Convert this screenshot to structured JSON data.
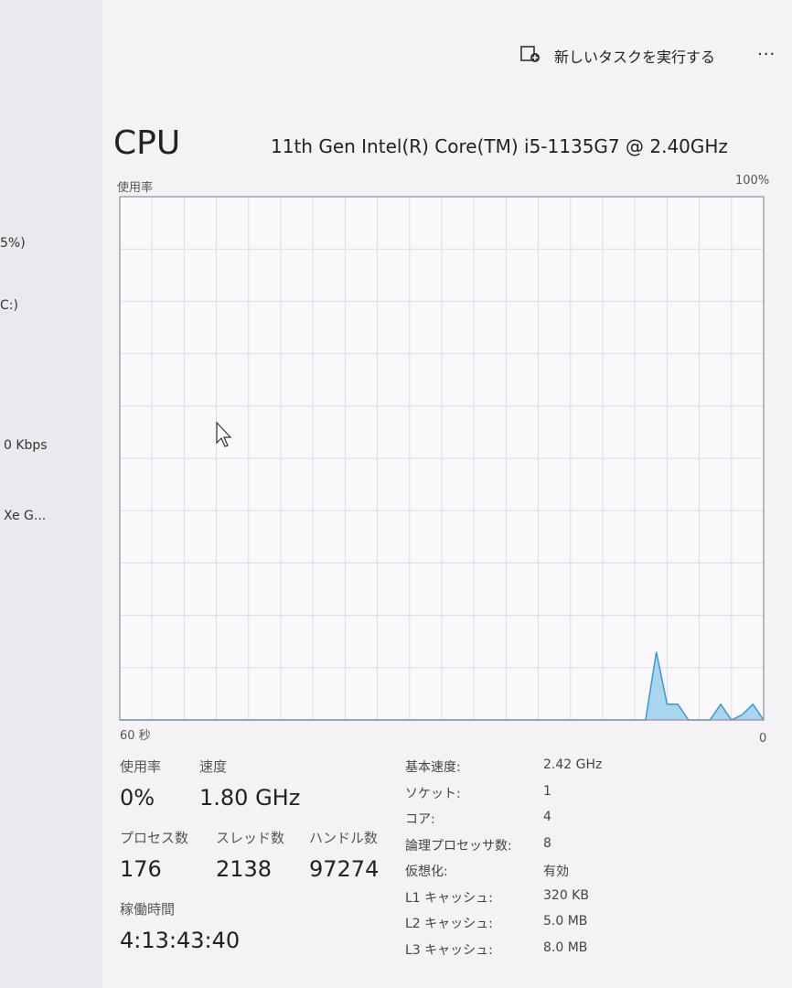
{
  "sidebar": {
    "items": [
      "5%)",
      "C:)",
      "0 Kbps",
      "Xe G..."
    ]
  },
  "toolbar": {
    "run_task": "新しいタスクを実行する",
    "more": "..."
  },
  "header": {
    "title": "CPU",
    "cpu_name": "11th Gen Intel(R) Core(TM) i5-1135G7 @ 2.40GHz"
  },
  "graph": {
    "label": "使用率",
    "max_label": {
      "value": 100,
      "label": "100%"
    },
    "min_label": {
      "value": 0,
      "label": "0"
    },
    "time_label": "60 秒",
    "values": [
      0,
      0,
      0,
      0,
      0,
      0,
      0,
      0,
      0,
      0,
      0,
      0,
      0,
      0,
      0,
      0,
      0,
      0,
      0,
      0,
      0,
      0,
      0,
      0,
      0,
      0,
      0,
      0,
      0,
      0,
      0,
      0,
      0,
      0,
      0,
      0,
      0,
      0,
      0,
      0,
      0,
      0,
      0,
      0,
      0,
      0,
      0,
      0,
      0,
      0,
      13,
      3,
      3,
      0,
      0,
      0,
      3,
      0,
      1,
      3,
      0
    ]
  },
  "stats": {
    "usage_label": "使用率",
    "usage": "0%",
    "speed_label": "速度",
    "speed": "1.80 GHz",
    "processes_label": "プロセス数",
    "processes": "176",
    "threads_label": "スレッド数",
    "threads": "2138",
    "handles_label": "ハンドル数",
    "handles": "97274",
    "uptime_label": "稼働時間",
    "uptime": "4:13:43:40"
  },
  "specs": {
    "rows": [
      [
        "基本速度:",
        "2.42 GHz"
      ],
      [
        "ソケット:",
        "1"
      ],
      [
        "コア:",
        "4"
      ],
      [
        "論理プロセッサ数:",
        "8"
      ],
      [
        "仮想化:",
        "有効"
      ],
      [
        "L1 キャッシュ:",
        "320 KB"
      ],
      [
        "L2 キャッシュ:",
        "5.0 MB"
      ],
      [
        "L3 キャッシュ:",
        "8.0 MB"
      ]
    ]
  }
}
